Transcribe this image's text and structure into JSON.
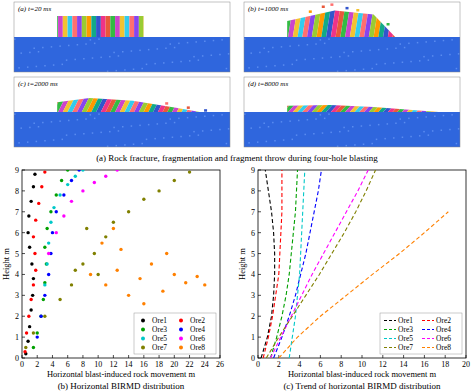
{
  "chart_data": [
    {
      "type": "image",
      "title": "(a) Rock fracture, fragmentation and fragment throw during four-hole blasting",
      "panels": [
        {
          "label": "(a) t=20 ms"
        },
        {
          "label": "(b) t=1000 ms"
        },
        {
          "label": "(c) t=2000 ms"
        },
        {
          "label": "(d) t=8000 ms"
        }
      ]
    },
    {
      "type": "scatter",
      "title": "(b) Horizontal BIRMD distribution",
      "x_label": "Horizontal blast-induced rock movement m",
      "y_label": "Height m",
      "xlim": [
        0,
        26
      ],
      "ylim": [
        0,
        9
      ],
      "xticks": [
        0,
        2,
        4,
        6,
        8,
        10,
        12,
        14,
        16,
        18,
        20,
        22,
        24,
        26
      ],
      "yticks": [
        0,
        1,
        2,
        3,
        4,
        5,
        6,
        7,
        8,
        9
      ],
      "legend": "lower right",
      "marker": "circle",
      "series": [
        {
          "name": "Ore1",
          "color": "#000000",
          "x": [
            0.5,
            0.8,
            1.0,
            1.2,
            1.4,
            1.5,
            1.3,
            1.0,
            0.8,
            0.9,
            1.2,
            1.5,
            1.7
          ],
          "values": [
            0.2,
            0.8,
            1.5,
            2.3,
            3.0,
            3.8,
            4.5,
            5.3,
            6.0,
            6.8,
            7.5,
            8.2,
            8.8
          ]
        },
        {
          "name": "Ore2",
          "color": "#ff0000",
          "x": [
            0.4,
            0.6,
            0.9,
            1.2,
            1.5,
            1.8,
            1.7,
            1.5,
            1.8,
            2.2,
            2.6,
            3.0
          ],
          "values": [
            0.3,
            1.2,
            2.0,
            2.8,
            3.5,
            4.2,
            5.0,
            5.8,
            6.6,
            7.4,
            8.2,
            8.9
          ]
        },
        {
          "name": "Ore3",
          "color": "#00a000",
          "x": [
            1.5,
            2.0,
            2.5,
            2.8,
            3.0,
            3.2,
            3.0,
            3.3,
            3.8,
            4.5,
            5.2,
            6.0
          ],
          "values": [
            0.5,
            1.2,
            2.0,
            2.8,
            3.6,
            4.5,
            5.3,
            6.2,
            7.0,
            7.8,
            8.5,
            9.0
          ]
        },
        {
          "name": "Ore4",
          "color": "#0000ff",
          "x": [
            2.0,
            2.5,
            3.0,
            3.5,
            3.8,
            4.0,
            4.5,
            5.5,
            6.5,
            7.5
          ],
          "values": [
            1.0,
            2.0,
            3.0,
            4.0,
            5.0,
            6.0,
            7.0,
            7.8,
            8.5,
            9.0
          ]
        },
        {
          "name": "Ore5",
          "color": "#00c8c8",
          "x": [
            3.0,
            3.3,
            3.5,
            3.8,
            4.2,
            5.0,
            6.0,
            7.0,
            8.0
          ],
          "values": [
            3.5,
            4.5,
            5.5,
            6.5,
            7.2,
            7.8,
            8.3,
            8.7,
            9.0
          ]
        },
        {
          "name": "Ore6",
          "color": "#ff00ff",
          "x": [
            3.5,
            4.5,
            5.5,
            6.5,
            8.0,
            9.5,
            11.0,
            12.5
          ],
          "values": [
            5.0,
            6.0,
            6.8,
            7.5,
            8.0,
            8.4,
            8.7,
            9.0
          ]
        },
        {
          "name": "Ore7",
          "color": "#808000",
          "x": [
            0.5,
            1.5,
            3.0,
            5.0,
            6.5,
            8.0,
            9.5,
            11.0,
            8.5,
            10.0,
            7.0,
            12.0,
            14.0,
            16.0,
            18.0,
            20.0,
            22.0
          ],
          "values": [
            0.5,
            1.2,
            2.0,
            2.8,
            3.5,
            4.5,
            5.0,
            5.8,
            6.2,
            4.0,
            4.2,
            6.5,
            7.0,
            7.6,
            8.0,
            8.5,
            8.9
          ]
        },
        {
          "name": "Ore8",
          "color": "#ff8000",
          "x": [
            9.0,
            11.0,
            12.5,
            14.0,
            15.5,
            17.0,
            18.5,
            20.0,
            21.5,
            23.0,
            24.0,
            13.0,
            16.0,
            19.0,
            10.5,
            12.0
          ],
          "values": [
            4.0,
            3.5,
            4.2,
            3.0,
            3.8,
            4.5,
            3.2,
            4.0,
            3.6,
            3.9,
            3.5,
            5.2,
            2.6,
            5.0,
            5.5,
            6.2
          ]
        }
      ]
    },
    {
      "type": "line",
      "title": "(c) Trend of horizontal BIRMD distribution",
      "x_label": "Horizontal blast-induced rock movement m",
      "y_label": "Height m",
      "xlim": [
        0,
        20
      ],
      "ylim": [
        0,
        9
      ],
      "xticks": [
        0,
        2,
        4,
        6,
        8,
        10,
        12,
        14,
        16,
        18,
        20
      ],
      "yticks": [
        0,
        1,
        2,
        3,
        4,
        5,
        6,
        7,
        8,
        9
      ],
      "legend": "lower right",
      "line_style": "dashed",
      "series": [
        {
          "name": "Ore1",
          "color": "#000000",
          "x": [
            0.3,
            0.9,
            1.3,
            1.5,
            1.6,
            1.6,
            1.5,
            1.3,
            1.0,
            0.7
          ],
          "values": [
            0,
            1,
            2,
            3,
            4,
            5,
            6,
            7,
            8,
            9
          ]
        },
        {
          "name": "Ore2",
          "color": "#ff0000",
          "x": [
            0.5,
            1.0,
            1.4,
            1.7,
            2.0,
            2.1,
            2.2,
            2.3,
            2.3,
            2.3
          ],
          "values": [
            0,
            1,
            2,
            3,
            4,
            5,
            6,
            7,
            8,
            9
          ]
        },
        {
          "name": "Ore3",
          "color": "#00a000",
          "x": [
            1.2,
            1.8,
            2.3,
            2.7,
            3.0,
            3.2,
            3.4,
            3.6,
            3.7,
            3.8
          ],
          "values": [
            0,
            1,
            2,
            3,
            4,
            5,
            6,
            7,
            8,
            9
          ]
        },
        {
          "name": "Ore4",
          "color": "#0000ff",
          "x": [
            1.5,
            2.3,
            3.0,
            3.6,
            4.1,
            4.6,
            5.0,
            5.4,
            5.8,
            6.1
          ],
          "values": [
            0,
            1,
            2,
            3,
            4,
            5,
            6,
            7,
            8,
            9
          ]
        },
        {
          "name": "Ore5",
          "color": "#00c8c8",
          "x": [
            3.0,
            3.3,
            3.6,
            3.8,
            4.0,
            4.1,
            4.2,
            4.3,
            4.4,
            4.5
          ],
          "values": [
            0,
            1,
            2,
            3,
            4,
            5,
            6,
            7,
            8,
            9
          ]
        },
        {
          "name": "Ore6",
          "color": "#ff00ff",
          "x": [
            1.2,
            2.2,
            3.2,
            4.2,
            5.2,
            6.3,
            7.4,
            8.5,
            9.6,
            10.6
          ],
          "values": [
            0,
            1,
            2,
            3,
            4,
            5,
            6,
            7,
            8,
            9
          ]
        },
        {
          "name": "Ore7",
          "color": "#808000",
          "x": [
            0.8,
            2.0,
            3.3,
            4.6,
            5.9,
            7.1,
            8.3,
            9.4,
            10.4,
            11.3
          ],
          "values": [
            0,
            1,
            2,
            3,
            4,
            5,
            6,
            7,
            8,
            9
          ]
        },
        {
          "name": "Ore8",
          "color": "#ff8000",
          "x": [
            2.0,
            3.8,
            6.0,
            8.5,
            11.0,
            13.6,
            16.0,
            18.3
          ],
          "values": [
            0,
            1,
            2,
            3,
            4,
            5,
            6,
            7
          ]
        }
      ]
    }
  ]
}
